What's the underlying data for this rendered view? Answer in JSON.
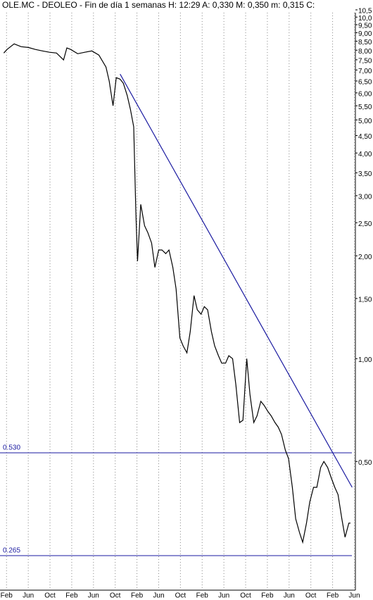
{
  "chart_data": {
    "type": "line",
    "title": "OLE.MC - DEOLEO - Fin de día 1 semanas  H: 12:29  A: 0,330  M: 0,350  m: 0,315  C:",
    "log_scale": true,
    "grid": true,
    "color": "#000000",
    "x": [
      -0.5,
      0.1,
      1.4,
      2.7,
      4.0,
      5.3,
      6.6,
      7.9,
      9.2,
      10.5,
      11.1,
      11.8,
      13.1,
      14.4,
      15.7,
      17.0,
      18.3,
      18.9,
      19.6,
      20.2,
      20.9,
      21.5,
      22.2,
      22.8,
      23.4,
      23.8,
      24.1,
      24.7,
      25.4,
      26.0,
      26.7,
      27.3,
      28.0,
      28.6,
      29.3,
      29.9,
      30.6,
      31.2,
      31.9,
      32.5,
      33.2,
      33.8,
      34.5,
      35.1,
      35.8,
      36.4,
      37.0,
      37.7,
      38.3,
      39.0,
      39.6,
      40.3,
      40.9,
      41.6,
      42.2,
      42.9,
      43.5,
      44.2,
      44.8,
      45.5,
      46.1,
      46.8,
      47.4,
      48.1,
      48.7,
      49.4,
      50.0,
      50.6,
      51.3,
      51.9,
      52.6,
      53.2,
      53.9,
      54.5,
      55.2,
      55.8,
      56.5,
      57.1,
      57.8,
      58.4,
      59.1,
      59.7,
      60.4,
      61.0,
      61.7,
      62.3,
      63.0,
      63.3
    ],
    "values": [
      7.85,
      8.04,
      8.35,
      8.19,
      8.15,
      8.04,
      7.96,
      7.89,
      7.85,
      7.49,
      8.12,
      8.04,
      7.81,
      7.89,
      7.96,
      7.74,
      7.14,
      6.49,
      5.5,
      6.65,
      6.58,
      6.4,
      5.9,
      5.37,
      4.77,
      2.7,
      1.93,
      2.83,
      2.45,
      2.34,
      2.18,
      1.85,
      2.08,
      2.08,
      2.03,
      2.08,
      1.85,
      1.6,
      1.15,
      1.09,
      1.04,
      1.2,
      1.53,
      1.39,
      1.35,
      1.42,
      1.39,
      1.2,
      1.09,
      1.02,
      0.97,
      0.97,
      1.02,
      1.0,
      0.84,
      0.65,
      0.66,
      1.0,
      0.785,
      0.65,
      0.68,
      0.75,
      0.73,
      0.7,
      0.68,
      0.65,
      0.63,
      0.6,
      0.54,
      0.51,
      0.42,
      0.34,
      0.31,
      0.29,
      0.33,
      0.38,
      0.42,
      0.42,
      0.48,
      0.5,
      0.48,
      0.45,
      0.42,
      0.4,
      0.34,
      0.3,
      0.33,
      0.33
    ],
    "trendline": {
      "color": "#1a1aa0",
      "x": [
        20.9,
        63.6
      ],
      "values": [
        6.81,
        0.42
      ]
    },
    "levels": [
      {
        "value": 0.53,
        "label": "0.530"
      },
      {
        "value": 0.265,
        "label": "0.265"
      }
    ],
    "level_color": "#1a1aa0",
    "xlim": [
      -1.2,
      64.2
    ],
    "ylim": [
      0.21,
      10.6
    ],
    "xticks": [
      {
        "value": 0,
        "label": "Feb"
      },
      {
        "value": 4,
        "label": "Jun"
      },
      {
        "value": 8,
        "label": "Oct"
      },
      {
        "value": 12,
        "label": "Feb"
      },
      {
        "value": 16,
        "label": "Jun"
      },
      {
        "value": 20,
        "label": "Oct"
      },
      {
        "value": 24,
        "label": "Feb"
      },
      {
        "value": 28,
        "label": "Jun"
      },
      {
        "value": 32,
        "label": "Oct"
      },
      {
        "value": 36,
        "label": "Feb"
      },
      {
        "value": 40,
        "label": "Jun"
      },
      {
        "value": 44,
        "label": "Oct"
      },
      {
        "value": 48,
        "label": "Feb"
      },
      {
        "value": 52,
        "label": "Jun"
      },
      {
        "value": 56,
        "label": "Oct"
      },
      {
        "value": 60,
        "label": "Feb"
      },
      {
        "value": 64,
        "label": "Jun"
      }
    ],
    "yticks": [
      {
        "value": 10.5,
        "label": "10,5"
      },
      {
        "value": 10,
        "label": "10,0"
      },
      {
        "value": 9.5,
        "label": "9,50"
      },
      {
        "value": 9,
        "label": "9,00"
      },
      {
        "value": 8.5,
        "label": "8,50"
      },
      {
        "value": 8,
        "label": "8,00"
      },
      {
        "value": 7.5,
        "label": "7,50"
      },
      {
        "value": 7,
        "label": "7,00"
      },
      {
        "value": 6.5,
        "label": "6,50"
      },
      {
        "value": 6,
        "label": "6,00"
      },
      {
        "value": 5.5,
        "label": "5,50"
      },
      {
        "value": 5,
        "label": "5,00"
      },
      {
        "value": 4.5,
        "label": "4,50"
      },
      {
        "value": 4,
        "label": "4,00"
      },
      {
        "value": 3.5,
        "label": "3,50"
      },
      {
        "value": 3,
        "label": "3,00"
      },
      {
        "value": 2.5,
        "label": "2,50"
      },
      {
        "value": 2,
        "label": "2,00"
      },
      {
        "value": 1.5,
        "label": "1,50"
      },
      {
        "value": 1,
        "label": "1,00"
      },
      {
        "value": 0.5,
        "label": "0,50"
      }
    ]
  }
}
